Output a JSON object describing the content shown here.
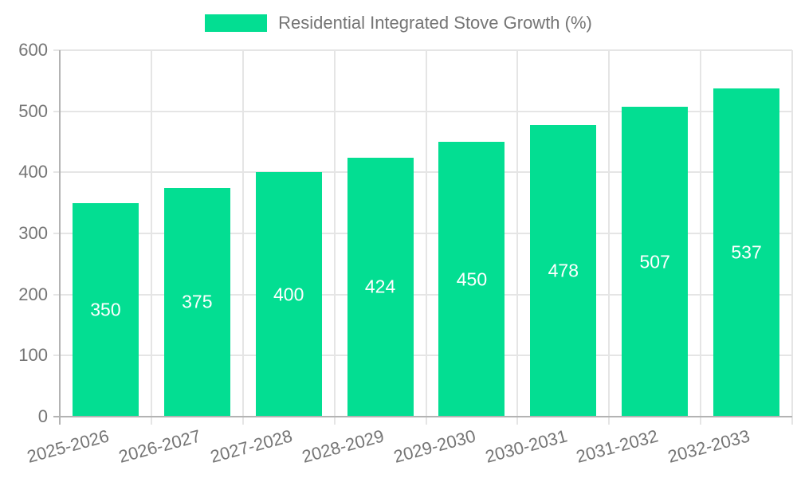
{
  "chart_data": {
    "type": "bar",
    "title": "Residential Integrated Stove Growth (%)",
    "categories": [
      "2025-2026",
      "2026-2027",
      "2027-2028",
      "2028-2029",
      "2029-2030",
      "2030-2031",
      "2031-2032",
      "2032-2033"
    ],
    "values": [
      350,
      375,
      400,
      424,
      450,
      478,
      507,
      537
    ],
    "xlabel": "",
    "ylabel": "",
    "ylim": [
      0,
      600
    ],
    "ytick_step": 100,
    "ytick_labels": [
      "0",
      "100",
      "200",
      "300",
      "400",
      "500",
      "600"
    ],
    "grid": true,
    "legend_position": "top",
    "colors": {
      "bar_fill": "#03de92",
      "value_label": "#ffffff",
      "tick_text": "#757575",
      "gridline": "#e5e5e5",
      "axis_line": "#b3b3b3"
    }
  }
}
